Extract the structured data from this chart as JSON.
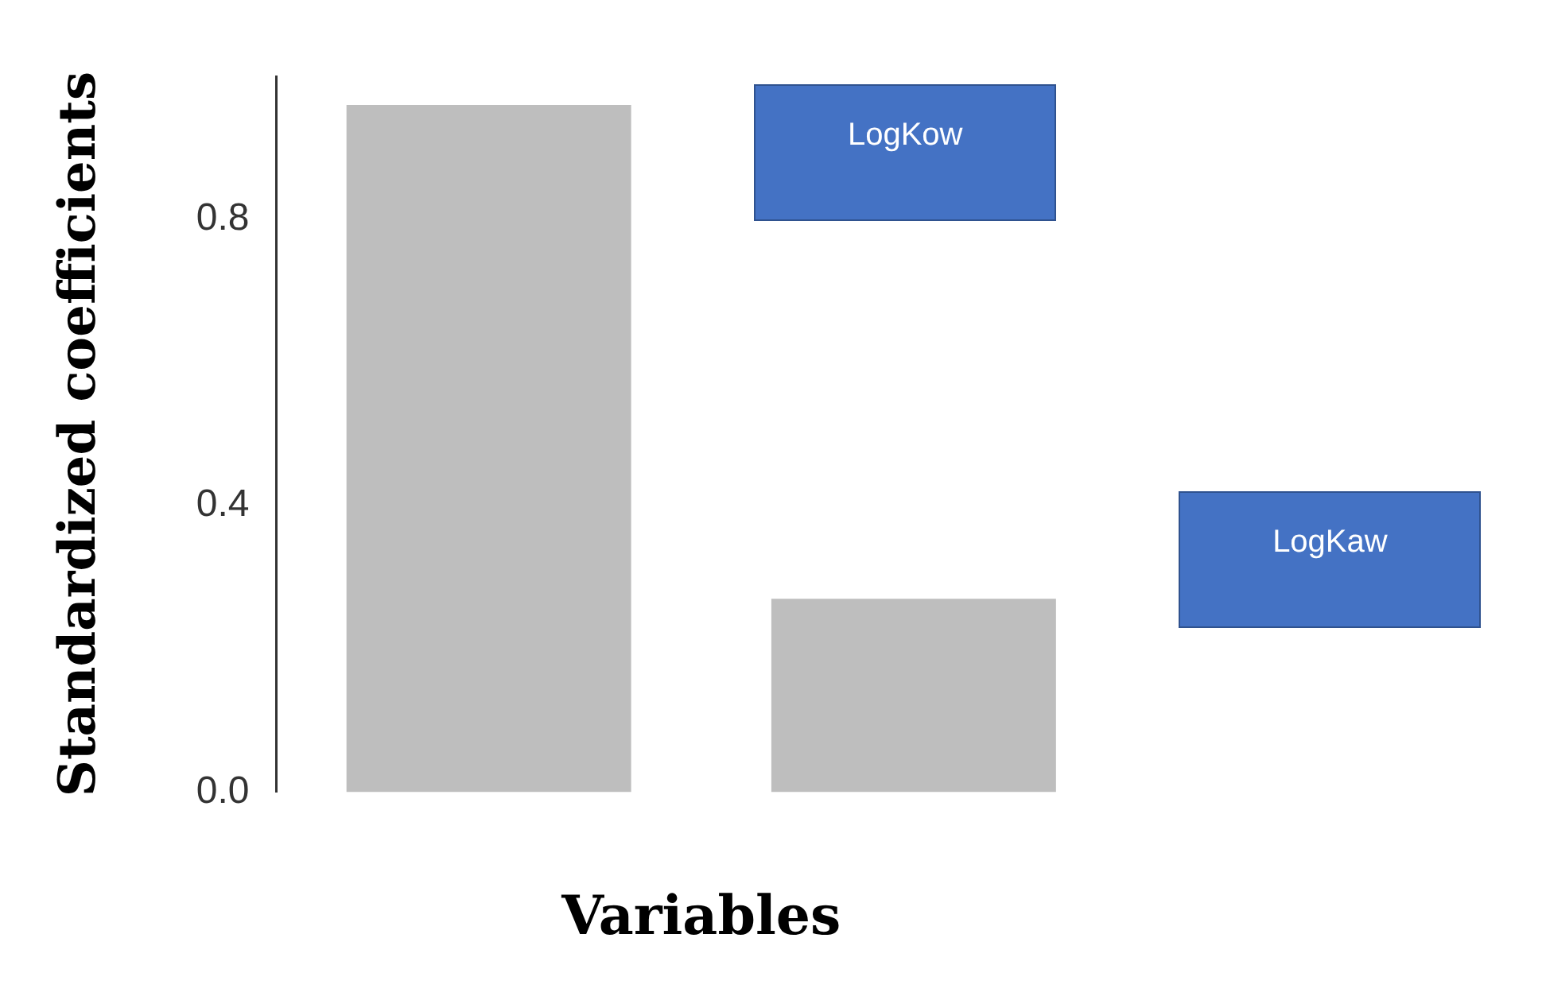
{
  "chart_data": {
    "type": "bar",
    "xlabel": "Variables",
    "ylabel": "Standardized coefficients",
    "categories": [
      null,
      null
    ],
    "annotations": [
      "LogKow",
      "LogKaw"
    ],
    "series": [
      {
        "color": "#bebebe",
        "values": [
          0.96,
          0.27
        ]
      }
    ],
    "ylim": [
      0,
      1.0
    ],
    "yticks": [
      {
        "value": 0,
        "label": "0.0"
      },
      {
        "value": 0.4,
        "label": "0.4"
      },
      {
        "value": 0.8,
        "label": "0.8"
      }
    ],
    "grid": false,
    "legend": false
  }
}
